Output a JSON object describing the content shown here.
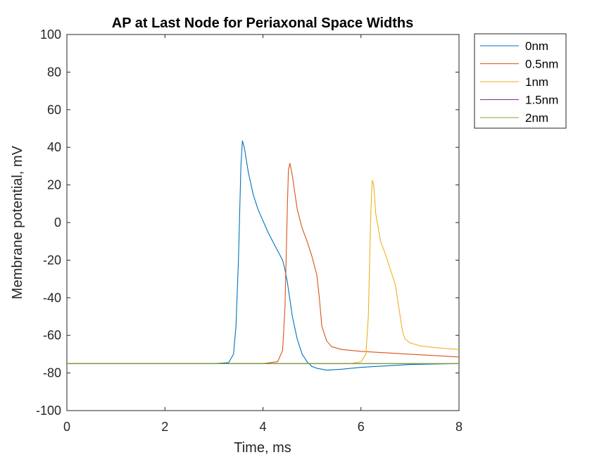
{
  "chart_data": {
    "type": "line",
    "title": "AP at Last Node for Periaxonal Space Widths",
    "xlabel": "Time, ms",
    "ylabel": "Membrane potential, mV",
    "xlim": [
      0,
      8
    ],
    "ylim": [
      -100,
      100
    ],
    "xticks": [
      0,
      2,
      4,
      6,
      8
    ],
    "xtick_labels": [
      "0",
      "2",
      "4",
      "6",
      "8"
    ],
    "yticks": [
      -100,
      -80,
      -60,
      -40,
      -20,
      0,
      20,
      40,
      60,
      80,
      100
    ],
    "ytick_labels": [
      "-100",
      "-80",
      "-60",
      "-40",
      "-20",
      "0",
      "20",
      "40",
      "60",
      "80",
      "100"
    ],
    "grid": false,
    "legend_position": "outside-top-right",
    "series": [
      {
        "name": "0nm",
        "color": "#0072BD",
        "x": [
          0,
          3.0,
          3.3,
          3.4,
          3.45,
          3.5,
          3.55,
          3.58,
          3.62,
          3.7,
          3.8,
          3.9,
          4.0,
          4.1,
          4.2,
          4.3,
          4.4,
          4.45,
          4.5,
          4.6,
          4.7,
          4.8,
          4.9,
          5.0,
          5.1,
          5.3,
          5.6,
          6.0,
          7.0,
          8.0
        ],
        "y": [
          -75,
          -75,
          -74.5,
          -70,
          -55,
          -20,
          30,
          43.5,
          40,
          27,
          15,
          7,
          1,
          -5,
          -10,
          -15,
          -20,
          -25,
          -32,
          -50,
          -62,
          -70,
          -74,
          -76.5,
          -77.5,
          -78.5,
          -78,
          -77,
          -75.5,
          -75
        ]
      },
      {
        "name": "0.5nm",
        "color": "#D95319",
        "x": [
          0,
          4.0,
          4.3,
          4.4,
          4.45,
          4.5,
          4.52,
          4.55,
          4.6,
          4.7,
          4.8,
          4.9,
          5.0,
          5.1,
          5.15,
          5.2,
          5.3,
          5.4,
          5.6,
          6.0,
          7.0,
          8.0
        ],
        "y": [
          -75,
          -75,
          -74,
          -68,
          -45,
          10,
          28,
          31.5,
          25,
          7,
          -3,
          -10,
          -18,
          -28,
          -40,
          -55,
          -63,
          -66,
          -67.5,
          -68.5,
          -70,
          -71.5
        ]
      },
      {
        "name": "1nm",
        "color": "#EDB120",
        "x": [
          0,
          5.8,
          6.0,
          6.1,
          6.15,
          6.2,
          6.23,
          6.26,
          6.3,
          6.4,
          6.5,
          6.6,
          6.7,
          6.8,
          6.85,
          6.9,
          7.0,
          7.2,
          7.5,
          8.0
        ],
        "y": [
          -75,
          -75,
          -74,
          -70,
          -50,
          5,
          22.5,
          20,
          5,
          -10,
          -17,
          -25,
          -33,
          -50,
          -58,
          -62,
          -64,
          -65.5,
          -66.5,
          -67.5
        ]
      },
      {
        "name": "1.5nm",
        "color": "#7E2F8E",
        "x": [
          0,
          8
        ],
        "y": [
          -75,
          -75
        ]
      },
      {
        "name": "2nm",
        "color": "#77AC30",
        "x": [
          0,
          8
        ],
        "y": [
          -75,
          -75
        ]
      }
    ]
  }
}
